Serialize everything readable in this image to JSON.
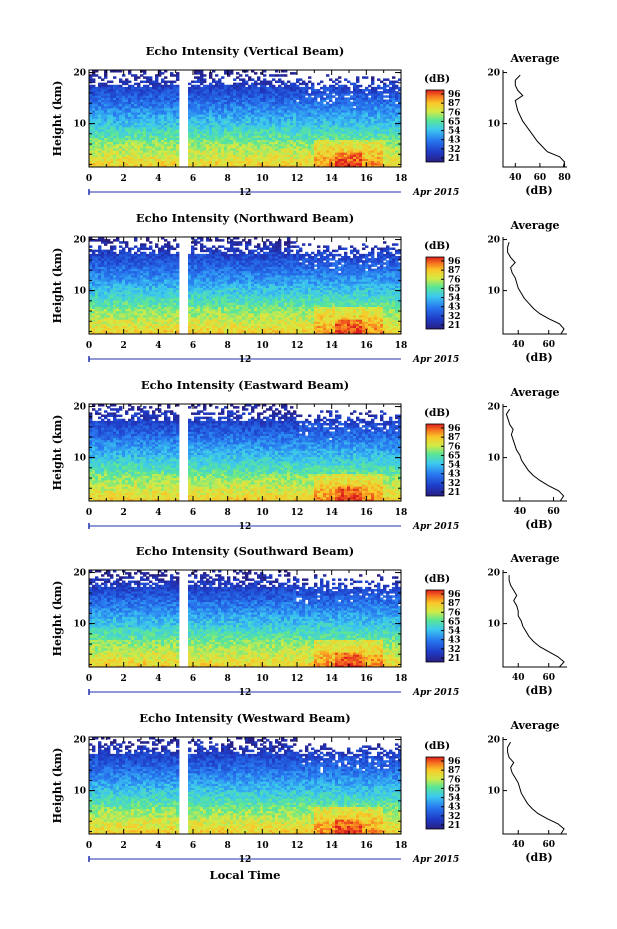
{
  "chart_data": {
    "type": "heatmap",
    "figure_xlabel": "Local Time",
    "date_label": "Apr 2015",
    "date_day": "12",
    "x_ticks": [
      "0",
      "2",
      "4",
      "6",
      "8",
      "10",
      "12",
      "14",
      "16",
      "18"
    ],
    "xlim": [
      0,
      18
    ],
    "ylabel": "Height (km)",
    "y_ticks": [
      "20",
      "10"
    ],
    "ylim": [
      1.5,
      20.5
    ],
    "colorbar_label": "(dB)",
    "average_title": "Average",
    "average_xlabel": "(dB)",
    "panels": [
      {
        "title": "Echo Intensity (Vertical Beam)",
        "colorbar_ticks": [
          "96",
          "87",
          "76",
          "65",
          "54",
          "43",
          "32",
          "21"
        ],
        "average_x_ticks": [
          "40",
          "60",
          "80"
        ],
        "average_xlim": [
          30,
          82
        ],
        "average_profile": {
          "height_km": [
            1.5,
            2.5,
            3.5,
            4.5,
            5.5,
            6.5,
            7.5,
            8.5,
            9.5,
            10.5,
            11.5,
            12.5,
            13.5,
            14.5,
            15.5,
            16.5,
            17.5,
            18.5,
            19.5
          ],
          "db": [
            79,
            80,
            76,
            66,
            62,
            58,
            55,
            52,
            49,
            46,
            44,
            42,
            41,
            40,
            46,
            42,
            40,
            40,
            44
          ]
        }
      },
      {
        "title": "Echo Intensity (Northward Beam)",
        "colorbar_ticks": [
          "96",
          "87",
          "76",
          "65",
          "54",
          "43",
          "32",
          "21"
        ],
        "average_x_ticks": [
          "40",
          "60"
        ],
        "average_xlim": [
          30,
          72
        ],
        "average_profile": {
          "height_km": [
            1.5,
            2.5,
            3.5,
            4.5,
            5.5,
            6.5,
            7.5,
            8.5,
            9.5,
            10.5,
            11.5,
            12.5,
            13.5,
            14.5,
            15.5,
            16.5,
            17.5,
            18.5,
            19.5
          ],
          "db": [
            68,
            70,
            67,
            60,
            54,
            50,
            47,
            44,
            42,
            40,
            39,
            38,
            36,
            35,
            38,
            35,
            33,
            33,
            34
          ]
        }
      },
      {
        "title": "Echo Intensity (Eastward Beam)",
        "colorbar_ticks": [
          "96",
          "87",
          "76",
          "65",
          "54",
          "43",
          "32",
          "21"
        ],
        "average_x_ticks": [
          "40",
          "60"
        ],
        "average_xlim": [
          30,
          68
        ],
        "average_profile": {
          "height_km": [
            1.5,
            2.5,
            3.5,
            4.5,
            5.5,
            6.5,
            7.5,
            8.5,
            9.5,
            10.5,
            11.5,
            12.5,
            13.5,
            14.5,
            15.5,
            16.5,
            17.5,
            18.5,
            19.5
          ],
          "db": [
            64,
            66,
            63,
            57,
            52,
            48,
            45,
            43,
            41,
            40,
            38,
            37,
            36,
            35,
            36,
            34,
            33,
            32,
            34
          ]
        }
      },
      {
        "title": "Echo Intensity (Southward Beam)",
        "colorbar_ticks": [
          "96",
          "87",
          "76",
          "65",
          "54",
          "43",
          "32",
          "21"
        ],
        "average_x_ticks": [
          "40",
          "60"
        ],
        "average_xlim": [
          30,
          72
        ],
        "average_profile": {
          "height_km": [
            1.5,
            2.5,
            3.5,
            4.5,
            5.5,
            6.5,
            7.5,
            8.5,
            9.5,
            10.5,
            11.5,
            12.5,
            13.5,
            14.5,
            15.5,
            16.5,
            17.5,
            18.5,
            19.5
          ],
          "db": [
            67,
            70,
            66,
            60,
            54,
            50,
            47,
            45,
            43,
            42,
            40,
            40,
            39,
            37,
            39,
            37,
            35,
            34,
            34
          ]
        }
      },
      {
        "title": "Echo Intensity (Westward Beam)",
        "colorbar_ticks": [
          "96",
          "87",
          "76",
          "65",
          "54",
          "43",
          "32",
          "21"
        ],
        "average_x_ticks": [
          "40",
          "60"
        ],
        "average_xlim": [
          30,
          72
        ],
        "average_profile": {
          "height_km": [
            1.5,
            2.5,
            3.5,
            4.5,
            5.5,
            6.5,
            7.5,
            8.5,
            9.5,
            10.5,
            11.5,
            12.5,
            13.5,
            14.5,
            15.5,
            16.5,
            17.5,
            18.5,
            19.5
          ],
          "db": [
            68,
            70,
            66,
            59,
            53,
            49,
            46,
            44,
            42,
            41,
            40,
            38,
            36,
            35,
            37,
            34,
            33,
            33,
            35
          ]
        }
      }
    ]
  }
}
